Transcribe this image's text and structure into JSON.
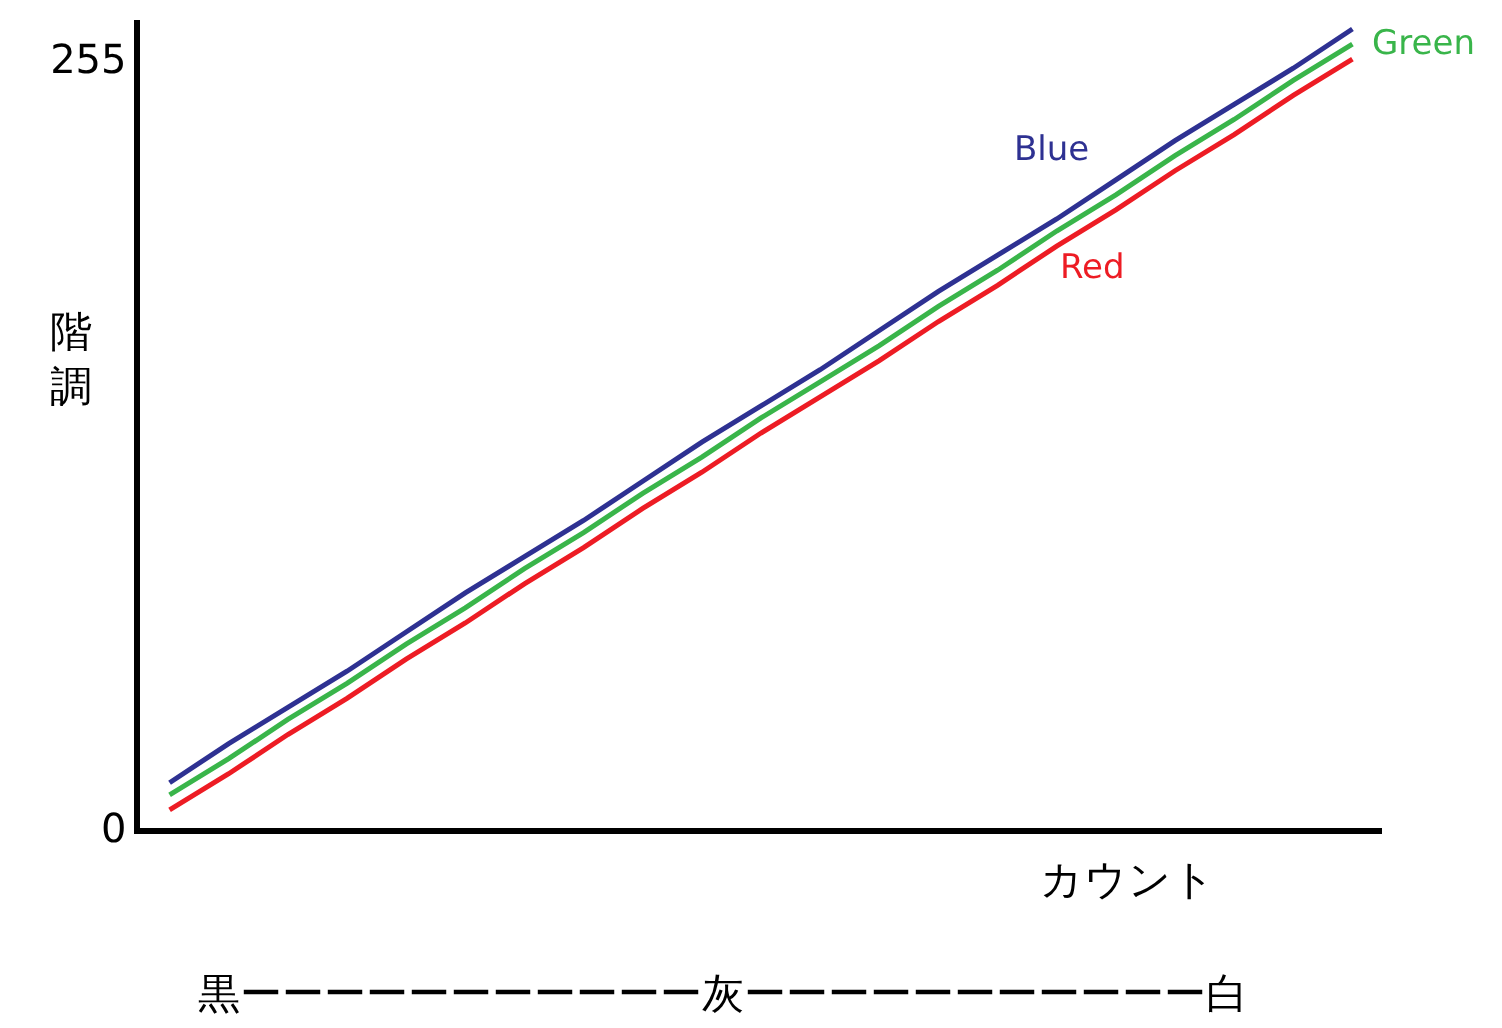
{
  "chart_data": {
    "type": "line",
    "ylabel": "階調",
    "xlabel": "カウント",
    "categories": [
      null,
      null,
      null,
      null,
      null,
      null,
      null,
      null,
      null,
      null,
      null,
      null,
      null,
      null,
      null,
      null,
      null,
      null,
      null,
      null,
      null
    ],
    "series": [
      {
        "name": "Blue",
        "color": "#2e3192",
        "values": [
          15,
          28,
          40,
          52,
          65,
          78,
          90,
          102,
          115,
          128,
          140,
          152,
          165,
          178,
          190,
          202,
          215,
          228,
          240,
          252,
          265
        ]
      },
      {
        "name": "Green",
        "color": "#39b54a",
        "values": [
          11,
          23,
          36,
          48,
          61,
          73,
          86,
          98,
          111,
          123,
          136,
          148,
          160,
          173,
          185,
          198,
          210,
          223,
          235,
          248,
          260
        ]
      },
      {
        "name": "Red",
        "color": "#ed1c24",
        "values": [
          6,
          18,
          31,
          43,
          56,
          68,
          81,
          93,
          106,
          118,
          131,
          143,
          155,
          168,
          180,
          193,
          205,
          218,
          230,
          243,
          255
        ]
      }
    ],
    "ylim": [
      0,
      268
    ],
    "yticks": [
      0,
      255
    ],
    "legend": false,
    "marker": "none",
    "line_style": "solid",
    "annotations": [
      "黒ーーーーーーーーーーー灰ーーーーーーーーーーー白"
    ]
  }
}
